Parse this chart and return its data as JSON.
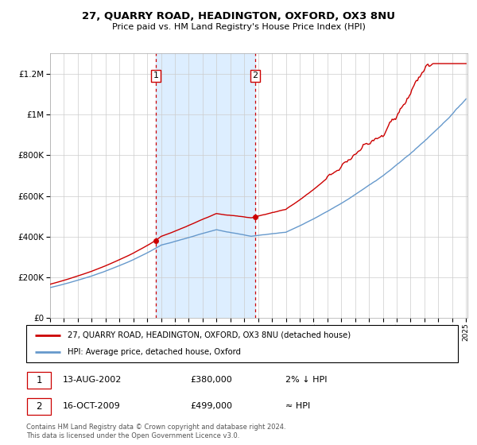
{
  "title": "27, QUARRY ROAD, HEADINGTON, OXFORD, OX3 8NU",
  "subtitle": "Price paid vs. HM Land Registry's House Price Index (HPI)",
  "legend_house": "27, QUARRY ROAD, HEADINGTON, OXFORD, OX3 8NU (detached house)",
  "legend_hpi": "HPI: Average price, detached house, Oxford",
  "annotation1_date": "13-AUG-2002",
  "annotation1_price": "£380,000",
  "annotation1_rel": "2% ↓ HPI",
  "annotation2_date": "16-OCT-2009",
  "annotation2_price": "£499,000",
  "annotation2_rel": "≈ HPI",
  "footer": "Contains HM Land Registry data © Crown copyright and database right 2024.\nThis data is licensed under the Open Government Licence v3.0.",
  "house_color": "#cc0000",
  "hpi_color": "#6699cc",
  "shade_color": "#ddeeff",
  "dot_color": "#cc0000",
  "marker1_year": 2002.617,
  "marker1_value": 380000,
  "marker2_year": 2009.789,
  "marker2_value": 499000,
  "ylim_min": 0,
  "ylim_max": 1300000,
  "yticks": [
    0,
    200000,
    400000,
    600000,
    800000,
    1000000,
    1200000
  ],
  "ytick_labels": [
    "£0",
    "£200K",
    "£400K",
    "£600K",
    "£800K",
    "£1M",
    "£1.2M"
  ],
  "xstart": 1995,
  "xend": 2025
}
